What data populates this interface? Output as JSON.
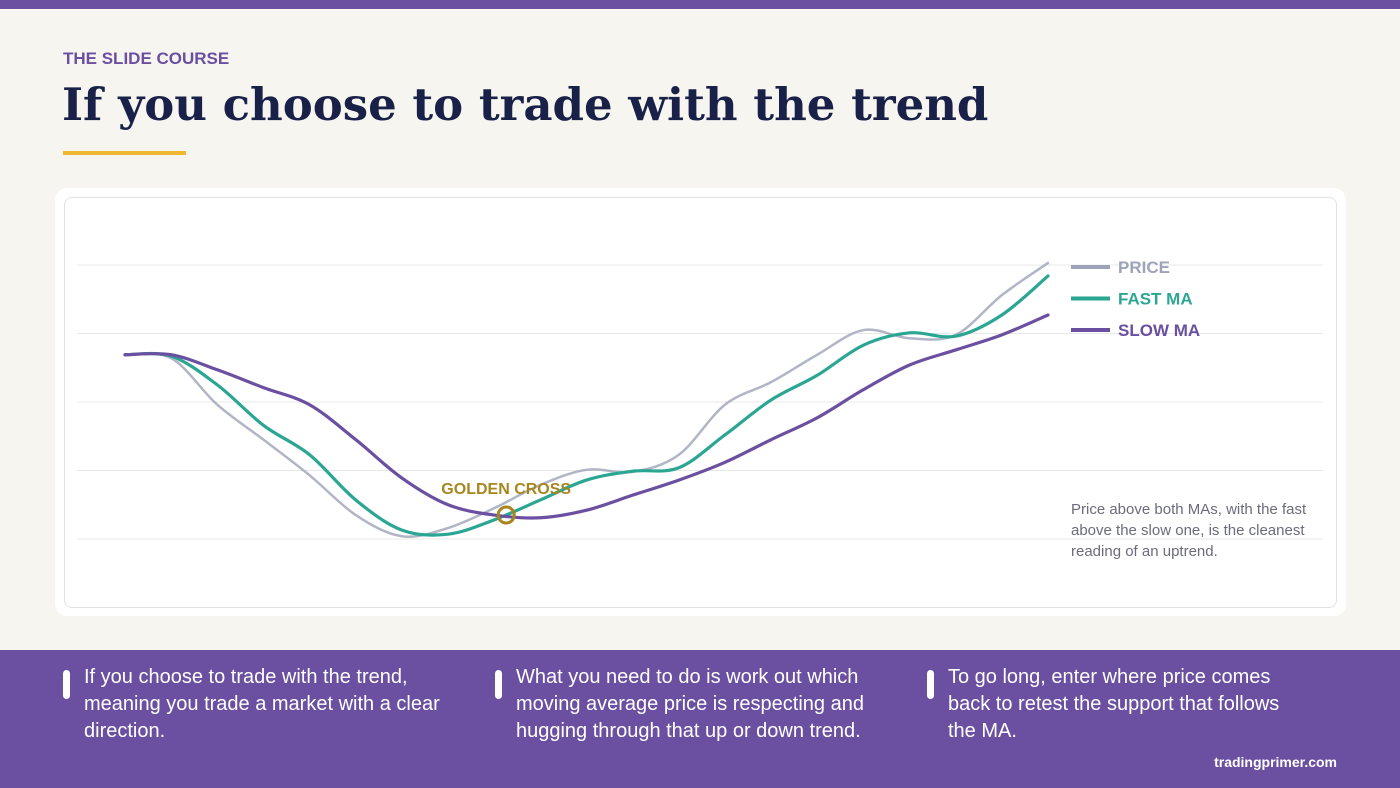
{
  "header": {
    "kicker": "THE SLIDE COURSE",
    "title": "If you choose to trade with the trend"
  },
  "chart_data": {
    "type": "line",
    "x": [
      0,
      1,
      2,
      3,
      4,
      5,
      6,
      7,
      8,
      9,
      10,
      11,
      12,
      13,
      14,
      15,
      16,
      17,
      18,
      19,
      20
    ],
    "xlim": [
      0,
      20
    ],
    "ylim": [
      0,
      6
    ],
    "yticks": [
      1,
      2,
      3,
      4,
      5
    ],
    "grid": true,
    "legend": "right",
    "series": [
      {
        "name": "PRICE",
        "color": "#9ea3b8",
        "values": [
          3.69,
          3.64,
          2.96,
          2.45,
          1.93,
          1.35,
          1.04,
          1.16,
          1.45,
          1.79,
          2.01,
          1.98,
          2.23,
          2.96,
          3.29,
          3.69,
          4.05,
          3.93,
          3.98,
          4.56,
          5.03
        ]
      },
      {
        "name": "FAST MA",
        "color": "#2aa693",
        "values": [
          3.69,
          3.67,
          3.25,
          2.66,
          2.23,
          1.57,
          1.13,
          1.07,
          1.28,
          1.57,
          1.86,
          1.99,
          2.04,
          2.52,
          3.03,
          3.39,
          3.83,
          4.01,
          3.96,
          4.27,
          4.84
        ]
      },
      {
        "name": "SLOW MA",
        "color": "#6b4fa0",
        "values": [
          3.69,
          3.69,
          3.47,
          3.21,
          2.96,
          2.45,
          1.89,
          1.5,
          1.35,
          1.31,
          1.42,
          1.64,
          1.86,
          2.12,
          2.45,
          2.77,
          3.18,
          3.54,
          3.76,
          3.98,
          4.27
        ]
      }
    ],
    "annotation": {
      "text": "GOLDEN CROSS",
      "x": 8.26,
      "y": 1.35,
      "color": "#a8861f"
    },
    "note": "Price above both MAs, with the fast above the slow one, is the cleanest reading of an uptrend."
  },
  "points": [
    "If you choose to trade with the trend, meaning you trade a market with a clear direction.",
    "What you need to do is work out which moving average price is respecting and hugging through that up or down trend.",
    "To go long, enter where price comes back to retest the support that follows the MA."
  ],
  "footer": "tradingprimer.com"
}
